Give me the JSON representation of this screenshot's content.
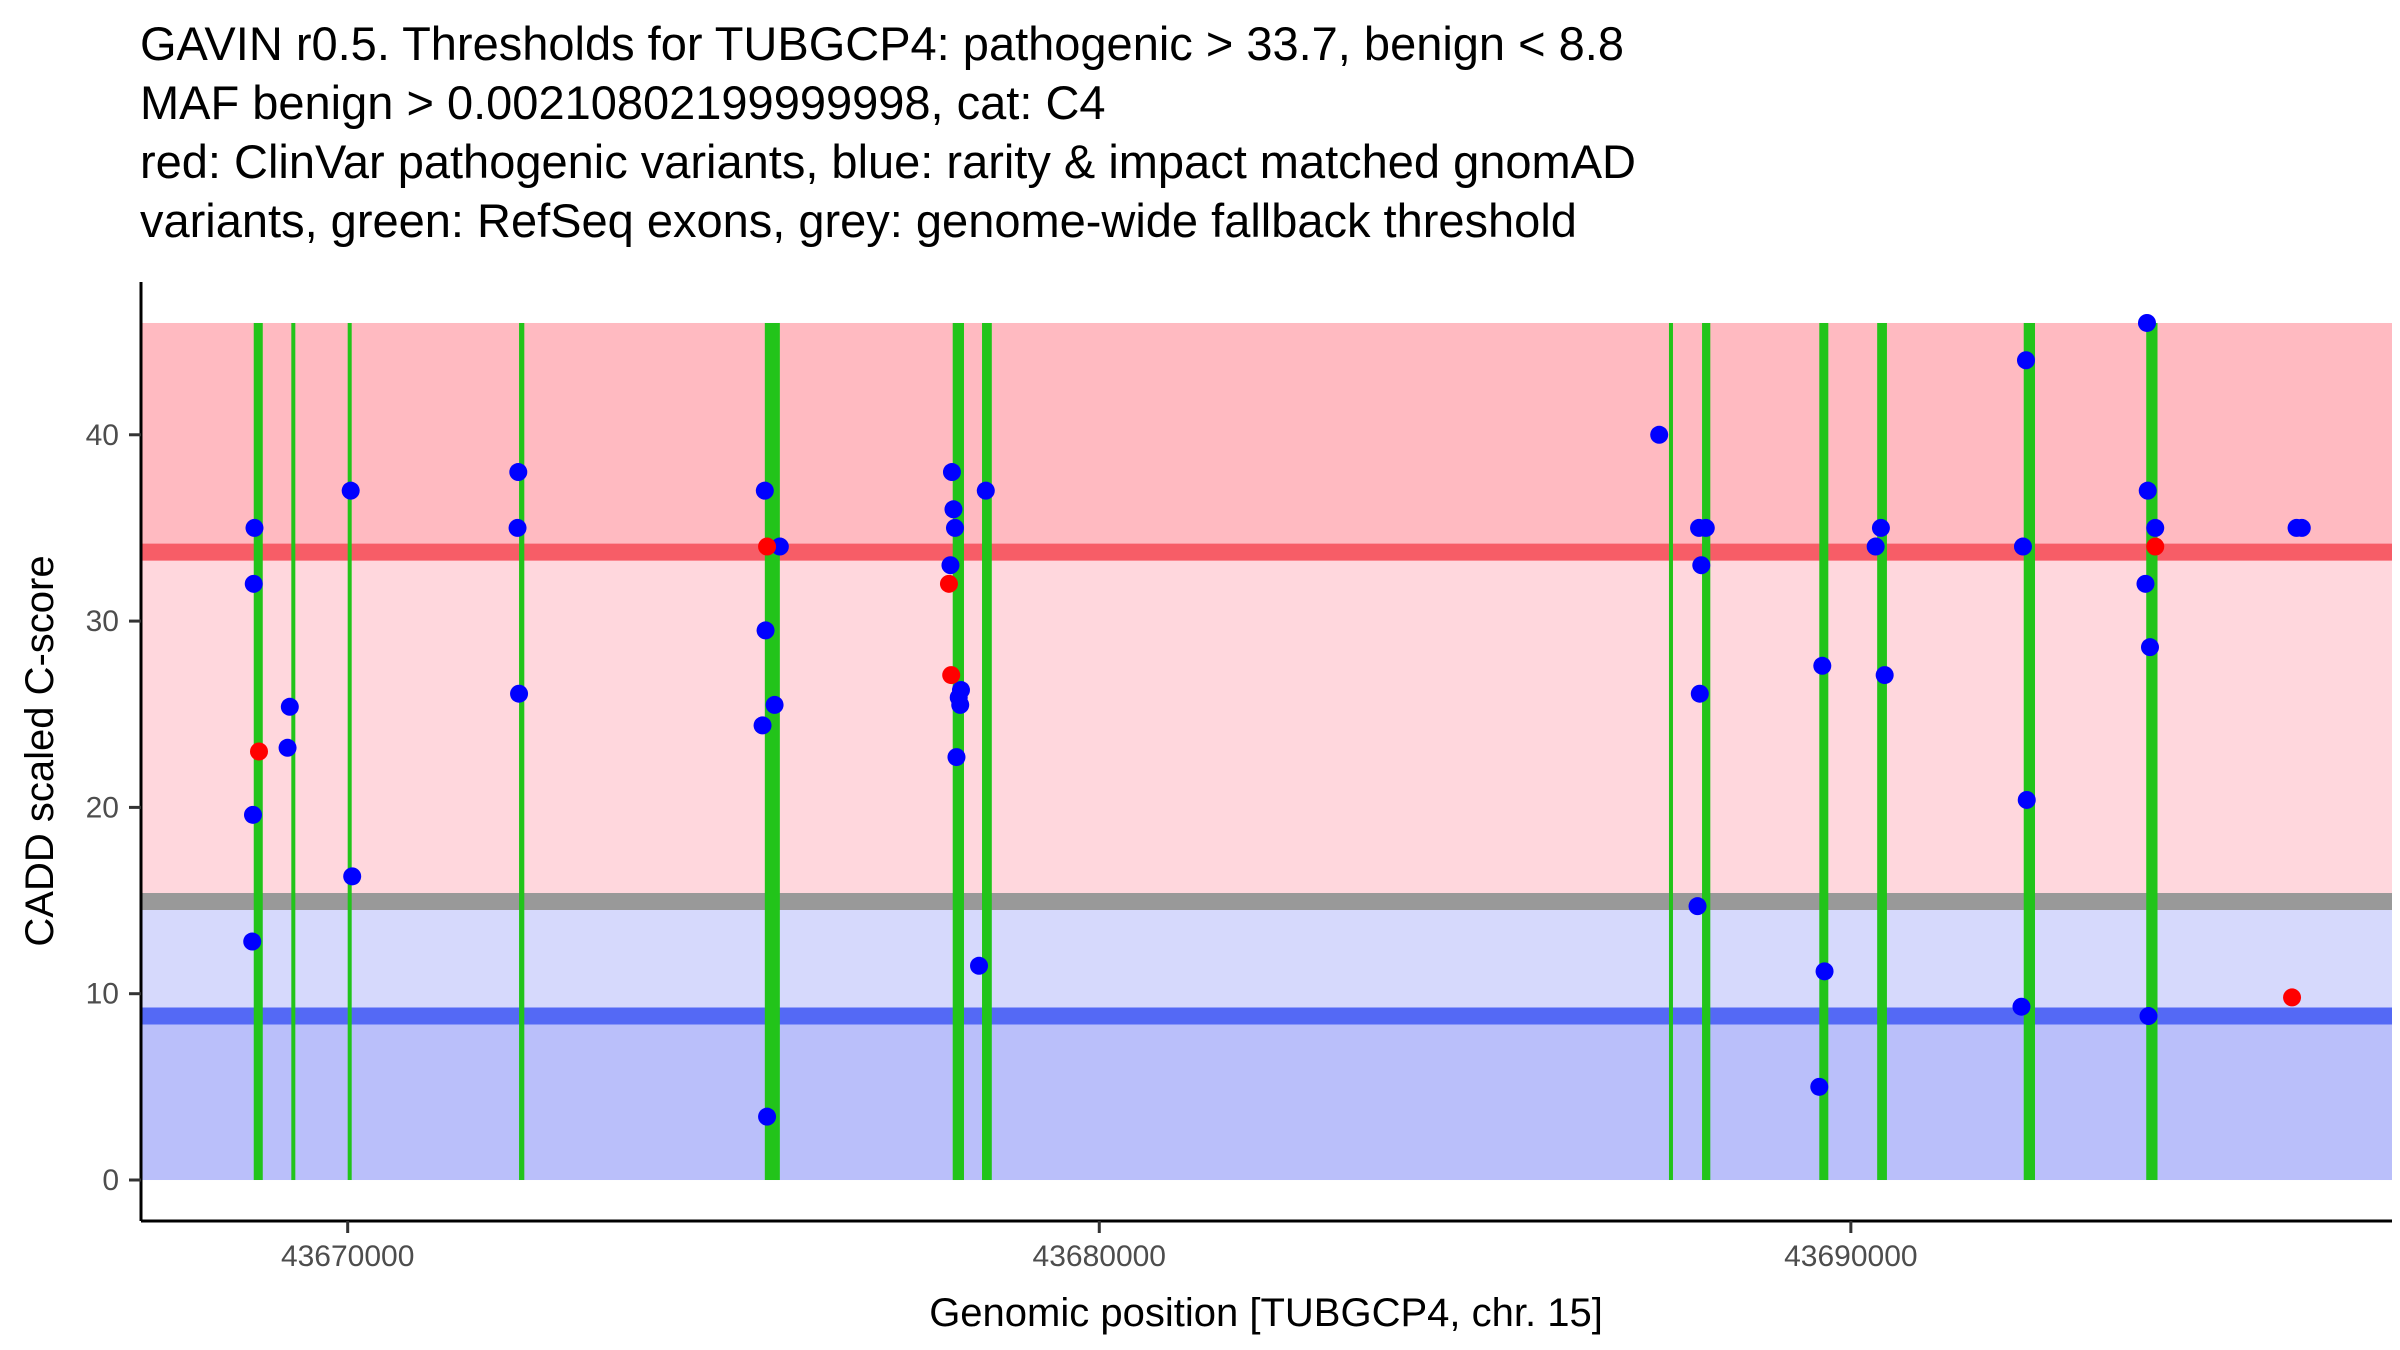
{
  "chart_data": {
    "type": "scatter",
    "title_lines": [
      "GAVIN r0.5. Thresholds for TUBGCP4: pathogenic > 33.7, benign < 8.8",
      "MAF benign > 0.00210802199999998, cat: C4",
      "red: ClinVar pathogenic variants, blue: rarity & impact matched gnomAD",
      "variants, green: RefSeq exons, grey: genome-wide fallback threshold"
    ],
    "xlabel": "Genomic position [TUBGCP4, chr. 15]",
    "ylabel": "CADD scaled C-score",
    "xlim": [
      43667250,
      43697200
    ],
    "ylim": [
      -2.2,
      48.2
    ],
    "x_ticks": [
      43670000,
      43680000,
      43690000
    ],
    "y_ticks": [
      0,
      10,
      20,
      30,
      40
    ],
    "colors": {
      "pathogenic_zone": "#ffbac1",
      "calibrated_zone": "#ffd7dd",
      "benign_zone_upper": "#d6d9fc",
      "benign_zone_lower": "#babffa",
      "pathogenic_threshold": "#f75d67",
      "benign_threshold": "#5469f5",
      "fallback_threshold": "#999999",
      "exon": "#22c41a",
      "clinvar": "#ff0000",
      "gnomad": "#0000ff"
    },
    "thresholds": {
      "pathogenic": 33.7,
      "benign": 8.8,
      "fallback_pathogenic": 15.3,
      "fallback_benign": 14.6,
      "zone_top": 46
    },
    "exons": [
      [
        43668750,
        43668870
      ],
      [
        43669250,
        43669300
      ],
      [
        43670000,
        43670040
      ],
      [
        43672280,
        43672350
      ],
      [
        43675550,
        43675750
      ],
      [
        43678050,
        43678200
      ],
      [
        43678440,
        43678570
      ],
      [
        43687580,
        43687620
      ],
      [
        43688020,
        43688130
      ],
      [
        43689580,
        43689700
      ],
      [
        43690350,
        43690480
      ],
      [
        43692300,
        43692450
      ],
      [
        43693930,
        43694080
      ]
    ],
    "series": [
      {
        "name": "gnomAD",
        "color": "#0000ff",
        "points": [
          [
            43668760,
            35
          ],
          [
            43668750,
            32
          ],
          [
            43668740,
            19.6
          ],
          [
            43668730,
            12.8
          ],
          [
            43669230,
            25.4
          ],
          [
            43669200,
            23.2
          ],
          [
            43670040,
            37
          ],
          [
            43670060,
            16.3
          ],
          [
            43672270,
            38
          ],
          [
            43672260,
            35
          ],
          [
            43672280,
            26.1
          ],
          [
            43675550,
            37
          ],
          [
            43675750,
            34
          ],
          [
            43675560,
            29.5
          ],
          [
            43675520,
            24.4
          ],
          [
            43675680,
            25.5
          ],
          [
            43675580,
            3.4
          ],
          [
            43678040,
            38
          ],
          [
            43678060,
            36
          ],
          [
            43678080,
            35
          ],
          [
            43678020,
            33
          ],
          [
            43678160,
            26.3
          ],
          [
            43678130,
            25.9
          ],
          [
            43678150,
            25.5
          ],
          [
            43678100,
            22.7
          ],
          [
            43678490,
            37
          ],
          [
            43678400,
            11.5
          ],
          [
            43687450,
            40
          ],
          [
            43687980,
            35
          ],
          [
            43688070,
            35
          ],
          [
            43688010,
            33
          ],
          [
            43687990,
            26.1
          ],
          [
            43687960,
            14.7
          ],
          [
            43689620,
            27.6
          ],
          [
            43689650,
            11.2
          ],
          [
            43689580,
            5
          ],
          [
            43690330,
            34
          ],
          [
            43690400,
            35
          ],
          [
            43690450,
            27.1
          ],
          [
            43692290,
            34
          ],
          [
            43692330,
            44
          ],
          [
            43692340,
            20.4
          ],
          [
            43692270,
            9.3
          ],
          [
            43693940,
            46
          ],
          [
            43693950,
            37
          ],
          [
            43694050,
            35
          ],
          [
            43693920,
            32
          ],
          [
            43693980,
            28.6
          ],
          [
            43693960,
            8.8
          ],
          [
            43695930,
            35
          ],
          [
            43696000,
            35
          ]
        ]
      },
      {
        "name": "ClinVar",
        "color": "#ff0000",
        "points": [
          [
            43668820,
            23
          ],
          [
            43675580,
            34
          ],
          [
            43678000,
            32
          ],
          [
            43678030,
            27.1
          ],
          [
            43694050,
            34
          ],
          [
            43695870,
            9.8
          ]
        ]
      }
    ]
  }
}
